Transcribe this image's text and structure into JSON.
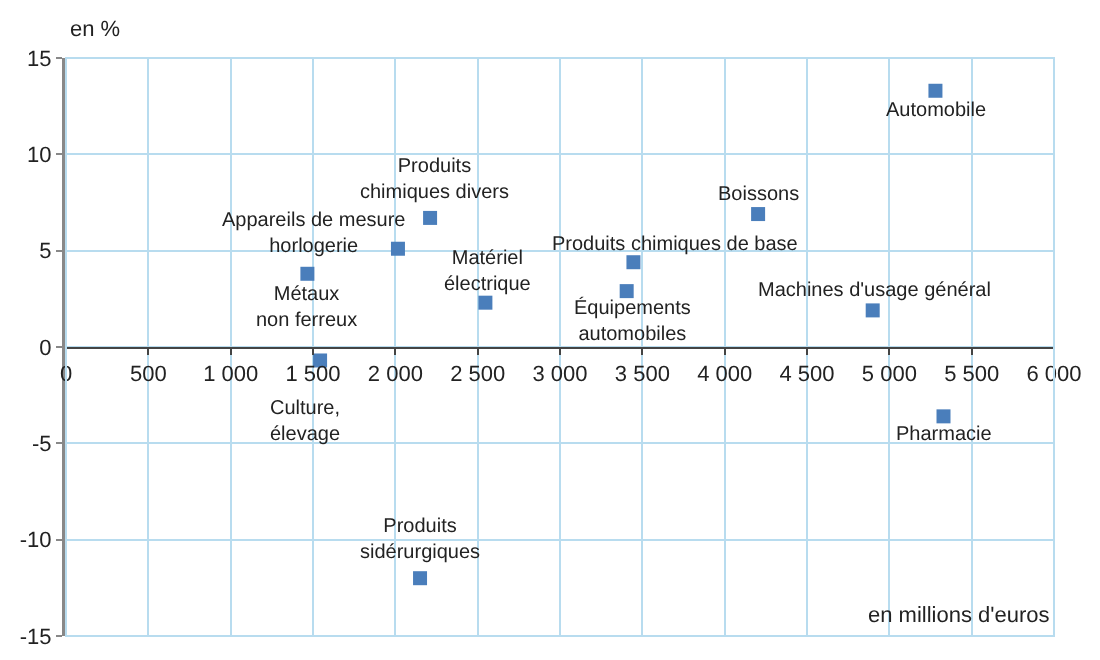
{
  "chart_data": {
    "type": "scatter",
    "xlabel": "en millions d'euros",
    "ylabel": "en %",
    "x": [
      1543,
      1466,
      2016,
      2211,
      2547,
      2150,
      5280,
      4203,
      3446,
      3405,
      4899,
      5329
    ],
    "series": [
      {
        "color": "#4a7ebb",
        "values": [
          -0.7,
          3.8,
          5.1,
          6.7,
          2.3,
          -12.0,
          13.3,
          6.9,
          4.4,
          2.9,
          1.9,
          -3.6
        ]
      }
    ],
    "annotations": [
      {
        "text": "Culture,\nélevage",
        "x": 1543,
        "y": -0.7
      },
      {
        "text": "Métaux\nnon ferreux",
        "x": 1466,
        "y": 3.8
      },
      {
        "text": "Appareils de mesure\nhorlogerie",
        "x": 2016,
        "y": 5.1
      },
      {
        "text": "Produits\nchimiques divers",
        "x": 2211,
        "y": 6.7
      },
      {
        "text": "Matériel\nélectrique",
        "x": 2547,
        "y": 2.3
      },
      {
        "text": "Produits\nsidérurgiques",
        "x": 2150,
        "y": -12.0
      },
      {
        "text": "Automobile",
        "x": 5280,
        "y": 13.3
      },
      {
        "text": "Boissons",
        "x": 4203,
        "y": 6.9
      },
      {
        "text": "Produits chimiques de base",
        "x": 3446,
        "y": 4.4
      },
      {
        "text": "Équipements\nautomobiles",
        "x": 3405,
        "y": 2.9
      },
      {
        "text": "Machines d'usage général",
        "x": 4899,
        "y": 1.9
      },
      {
        "text": "Pharmacie",
        "x": 5329,
        "y": -3.6
      }
    ],
    "xlim": [
      0,
      6000
    ],
    "xticks": [
      0,
      500,
      {
        "value": 1000,
        "label": "1 000"
      },
      {
        "value": 1500,
        "label": "1 500"
      },
      {
        "value": 2000,
        "label": "2 000"
      },
      {
        "value": 2500,
        "label": "2 500"
      },
      {
        "value": 3000,
        "label": "3 000"
      },
      {
        "value": 3500,
        "label": "3 500"
      },
      {
        "value": 4000,
        "label": "4 000"
      },
      {
        "value": 4500,
        "label": "4 500"
      },
      {
        "value": 5000,
        "label": "5 000"
      },
      {
        "value": 5500,
        "label": "5 500"
      },
      {
        "value": 6000,
        "label": "6 000"
      }
    ],
    "ylim": [
      -15,
      15
    ],
    "yticks": [
      -15,
      -10,
      -5,
      0,
      5,
      10,
      15
    ],
    "grid": true,
    "marker": "square"
  }
}
